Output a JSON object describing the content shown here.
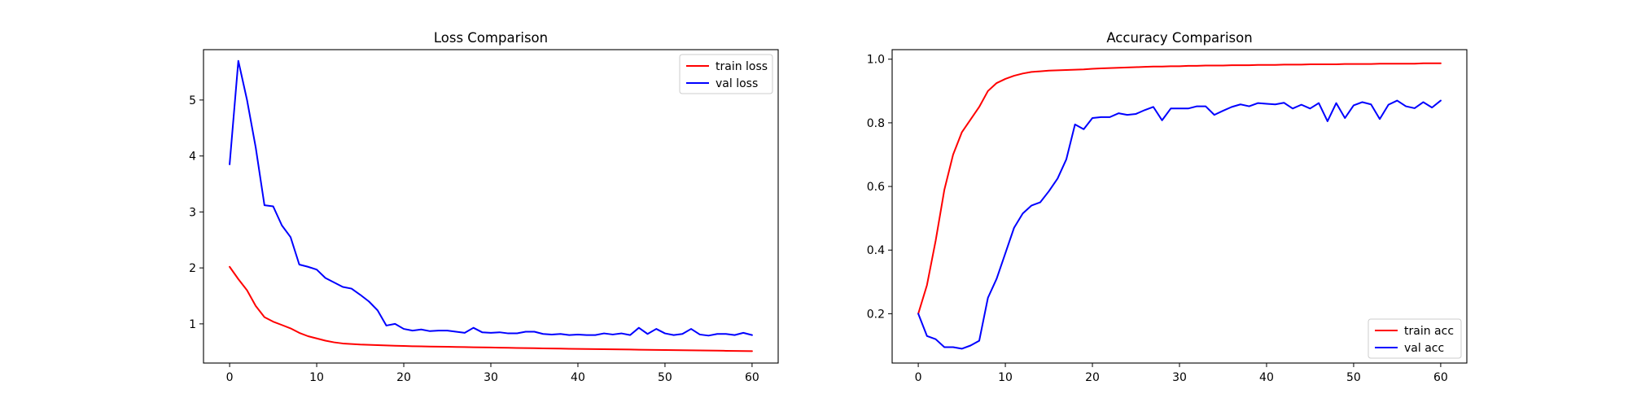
{
  "chart_data": [
    {
      "type": "line",
      "title": "Loss Comparison",
      "xlabel": "",
      "ylabel": "",
      "xlim": [
        -3,
        63
      ],
      "ylim": [
        0.3,
        5.9
      ],
      "xticks": [
        0,
        10,
        20,
        30,
        40,
        50,
        60
      ],
      "yticks": [
        1,
        2,
        3,
        4,
        5
      ],
      "grid": false,
      "legend": "top-right",
      "series": [
        {
          "name": "train loss",
          "color": "#ff0000",
          "x": [
            0,
            1,
            2,
            3,
            4,
            5,
            6,
            7,
            8,
            9,
            10,
            11,
            12,
            13,
            14,
            15,
            16,
            17,
            18,
            19,
            20,
            21,
            22,
            23,
            24,
            25,
            26,
            27,
            28,
            29,
            30,
            31,
            32,
            33,
            34,
            35,
            36,
            37,
            38,
            39,
            40,
            41,
            42,
            43,
            44,
            45,
            46,
            47,
            48,
            49,
            50,
            51,
            52,
            53,
            54,
            55,
            56,
            57,
            58,
            59,
            60
          ],
          "values": [
            2.02,
            1.8,
            1.6,
            1.32,
            1.12,
            1.04,
            0.98,
            0.92,
            0.84,
            0.78,
            0.74,
            0.7,
            0.67,
            0.65,
            0.64,
            0.63,
            0.625,
            0.62,
            0.615,
            0.61,
            0.605,
            0.6,
            0.598,
            0.595,
            0.592,
            0.59,
            0.588,
            0.585,
            0.582,
            0.58,
            0.578,
            0.575,
            0.572,
            0.57,
            0.568,
            0.565,
            0.562,
            0.56,
            0.558,
            0.555,
            0.553,
            0.551,
            0.549,
            0.547,
            0.545,
            0.543,
            0.541,
            0.539,
            0.537,
            0.535,
            0.533,
            0.531,
            0.529,
            0.527,
            0.525,
            0.523,
            0.521,
            0.519,
            0.517,
            0.515,
            0.513
          ]
        },
        {
          "name": "val loss",
          "color": "#0000ff",
          "x": [
            0,
            1,
            2,
            3,
            4,
            5,
            6,
            7,
            8,
            9,
            10,
            11,
            12,
            13,
            14,
            15,
            16,
            17,
            18,
            19,
            20,
            21,
            22,
            23,
            24,
            25,
            26,
            27,
            28,
            29,
            30,
            31,
            32,
            33,
            34,
            35,
            36,
            37,
            38,
            39,
            40,
            41,
            42,
            43,
            44,
            45,
            46,
            47,
            48,
            49,
            50,
            51,
            52,
            53,
            54,
            55,
            56,
            57,
            58,
            59,
            60
          ],
          "values": [
            3.85,
            5.7,
            5.0,
            4.15,
            3.12,
            3.1,
            2.76,
            2.55,
            2.06,
            2.02,
            1.97,
            1.82,
            1.74,
            1.66,
            1.63,
            1.52,
            1.4,
            1.24,
            0.97,
            1.0,
            0.91,
            0.88,
            0.9,
            0.87,
            0.88,
            0.88,
            0.86,
            0.84,
            0.93,
            0.85,
            0.84,
            0.85,
            0.83,
            0.83,
            0.86,
            0.86,
            0.82,
            0.81,
            0.82,
            0.8,
            0.81,
            0.8,
            0.8,
            0.83,
            0.81,
            0.83,
            0.8,
            0.93,
            0.82,
            0.91,
            0.83,
            0.8,
            0.82,
            0.91,
            0.81,
            0.79,
            0.82,
            0.82,
            0.8,
            0.84,
            0.8
          ]
        }
      ]
    },
    {
      "type": "line",
      "title": "Accuracy Comparison",
      "xlabel": "",
      "ylabel": "",
      "xlim": [
        -3,
        63
      ],
      "ylim": [
        0.045,
        1.03
      ],
      "xticks": [
        0,
        10,
        20,
        30,
        40,
        50,
        60
      ],
      "yticks": [
        0.2,
        0.4,
        0.6,
        0.8,
        1.0
      ],
      "ytick_labels": [
        "0.2",
        "0.4",
        "0.6",
        "0.8",
        "1.0"
      ],
      "grid": false,
      "legend": "bottom-right",
      "series": [
        {
          "name": "train acc",
          "color": "#ff0000",
          "x": [
            0,
            1,
            2,
            3,
            4,
            5,
            6,
            7,
            8,
            9,
            10,
            11,
            12,
            13,
            14,
            15,
            16,
            17,
            18,
            19,
            20,
            21,
            22,
            23,
            24,
            25,
            26,
            27,
            28,
            29,
            30,
            31,
            32,
            33,
            34,
            35,
            36,
            37,
            38,
            39,
            40,
            41,
            42,
            43,
            44,
            45,
            46,
            47,
            48,
            49,
            50,
            51,
            52,
            53,
            54,
            55,
            56,
            57,
            58,
            59,
            60
          ],
          "values": [
            0.2,
            0.29,
            0.43,
            0.59,
            0.7,
            0.77,
            0.81,
            0.85,
            0.9,
            0.925,
            0.938,
            0.948,
            0.955,
            0.96,
            0.962,
            0.964,
            0.965,
            0.966,
            0.967,
            0.968,
            0.97,
            0.971,
            0.972,
            0.973,
            0.974,
            0.975,
            0.976,
            0.977,
            0.977,
            0.978,
            0.978,
            0.979,
            0.979,
            0.98,
            0.98,
            0.98,
            0.981,
            0.981,
            0.981,
            0.982,
            0.982,
            0.982,
            0.983,
            0.983,
            0.983,
            0.984,
            0.984,
            0.984,
            0.984,
            0.985,
            0.985,
            0.985,
            0.985,
            0.986,
            0.986,
            0.986,
            0.986,
            0.986,
            0.987,
            0.987,
            0.987
          ]
        },
        {
          "name": "val acc",
          "color": "#0000ff",
          "x": [
            0,
            1,
            2,
            3,
            4,
            5,
            6,
            7,
            8,
            9,
            10,
            11,
            12,
            13,
            14,
            15,
            16,
            17,
            18,
            19,
            20,
            21,
            22,
            23,
            24,
            25,
            26,
            27,
            28,
            29,
            30,
            31,
            32,
            33,
            34,
            35,
            36,
            37,
            38,
            39,
            40,
            41,
            42,
            43,
            44,
            45,
            46,
            47,
            48,
            49,
            50,
            51,
            52,
            53,
            54,
            55,
            56,
            57,
            58,
            59,
            60
          ],
          "values": [
            0.2,
            0.13,
            0.12,
            0.095,
            0.095,
            0.09,
            0.1,
            0.115,
            0.25,
            0.31,
            0.39,
            0.47,
            0.515,
            0.54,
            0.55,
            0.585,
            0.625,
            0.685,
            0.795,
            0.78,
            0.815,
            0.818,
            0.818,
            0.83,
            0.825,
            0.828,
            0.84,
            0.85,
            0.808,
            0.845,
            0.845,
            0.845,
            0.852,
            0.852,
            0.825,
            0.838,
            0.85,
            0.858,
            0.852,
            0.862,
            0.86,
            0.858,
            0.863,
            0.845,
            0.857,
            0.845,
            0.862,
            0.805,
            0.862,
            0.815,
            0.855,
            0.865,
            0.858,
            0.812,
            0.857,
            0.87,
            0.852,
            0.846,
            0.865,
            0.848,
            0.87
          ]
        }
      ]
    }
  ]
}
